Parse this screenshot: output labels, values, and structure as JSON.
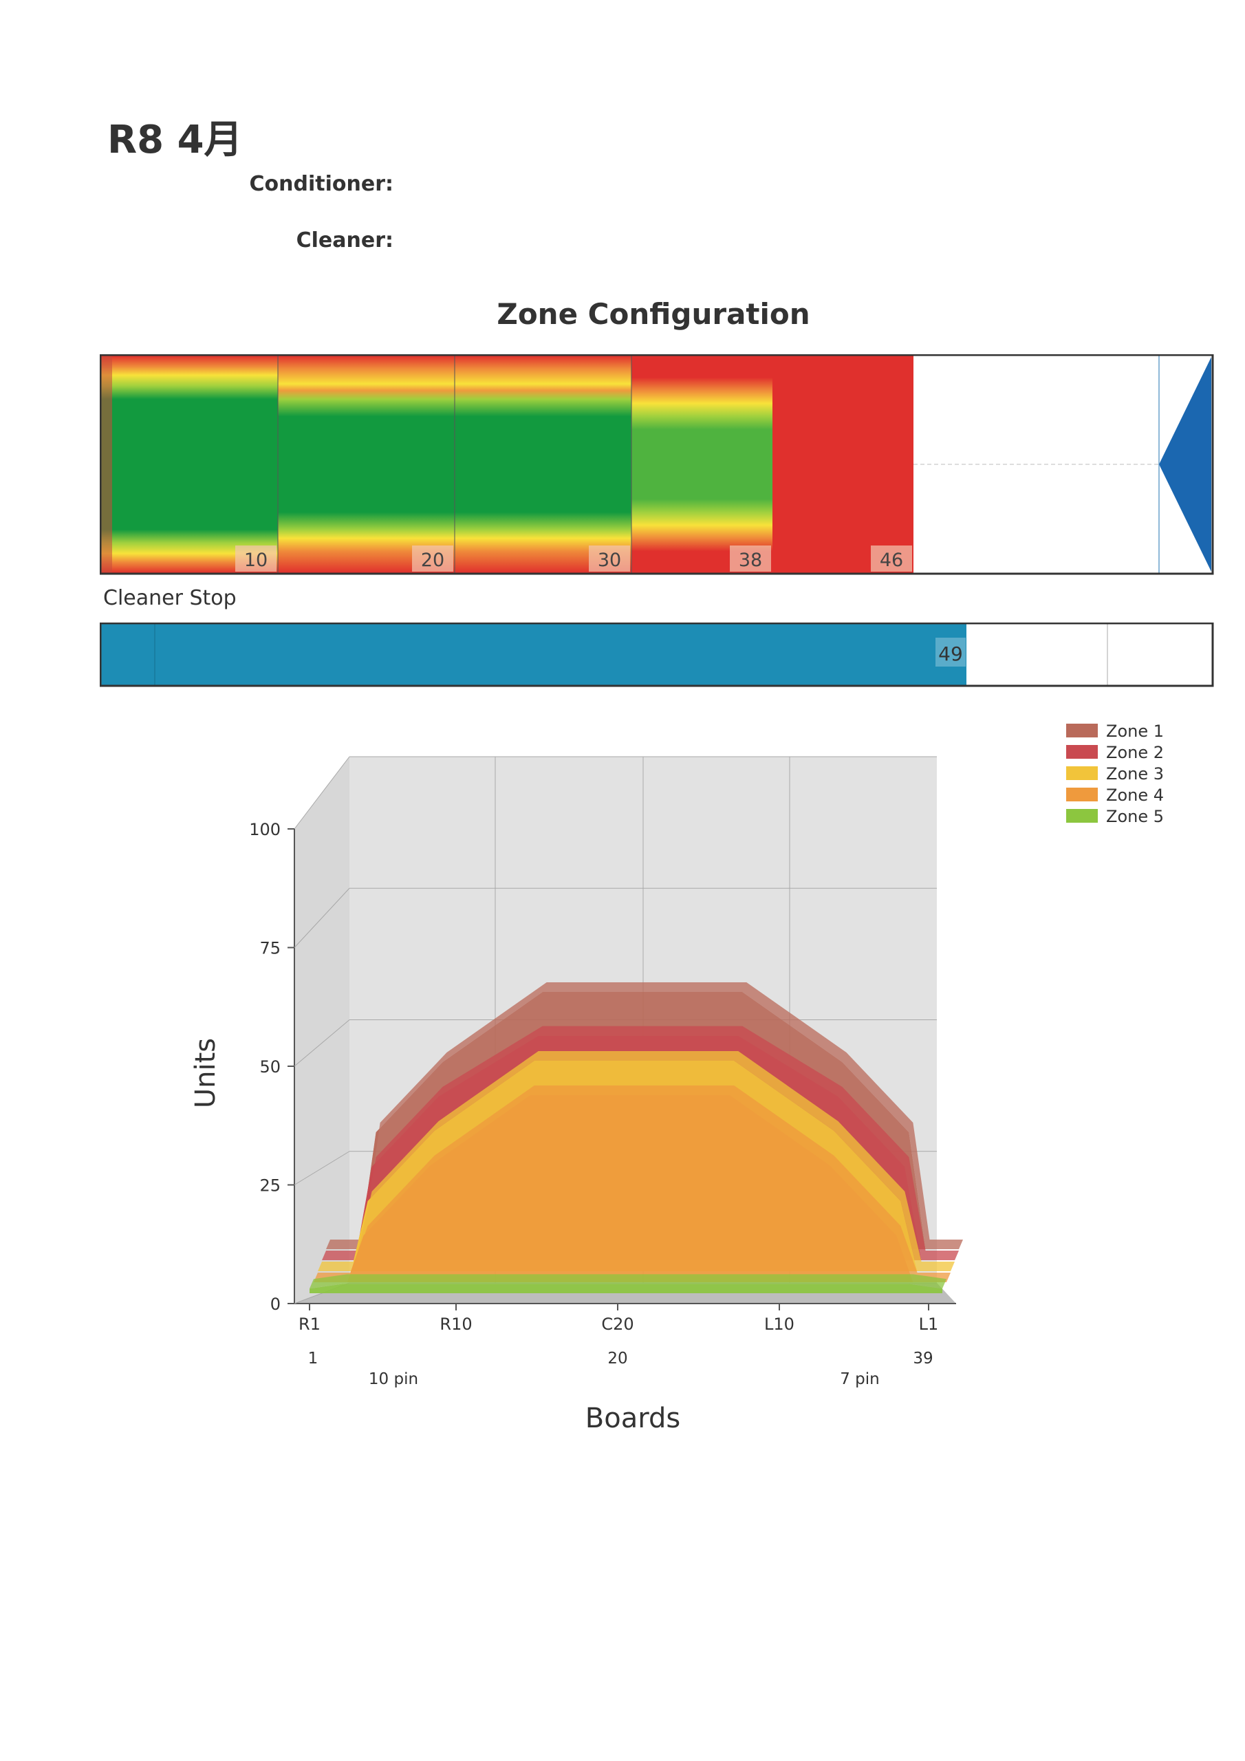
{
  "header": {
    "title": "R8 4月",
    "conditioner_label": "Conditioner:",
    "cleaner_label": "Cleaner:",
    "section_title": "Zone Configuration",
    "cleaner_stop_label": "Cleaner Stop"
  },
  "lane_strip": {
    "segment_labels": [
      "10",
      "20",
      "30",
      "38",
      "46"
    ],
    "cleaner_stop_value": "49"
  },
  "colors": {
    "zone1": "#b96a5a",
    "zone2": "#c94a50",
    "zone3": "#f2c43a",
    "zone4": "#ef9a3d",
    "zone5": "#8cc63f",
    "lane_green": "#129a3f",
    "lane_red": "#e0302d",
    "arrow_blue": "#1b67b0",
    "cleaner_blue": "#1d8db5"
  },
  "chart_data": {
    "type": "area",
    "xlabel": "Boards",
    "ylabel": "Units",
    "ylim": [
      0,
      100
    ],
    "yticks": [
      "0",
      "25",
      "50",
      "75",
      "100"
    ],
    "xticks": [
      "R1",
      "R10",
      "C20",
      "L10",
      "L1"
    ],
    "xticks_secondary": [
      "1",
      "20",
      "39"
    ],
    "pin_labels": [
      "10 pin",
      "7 pin"
    ],
    "legend_position": "top-right",
    "series": [
      {
        "name": "Zone 1",
        "x": [
          1,
          3,
          4,
          8,
          14,
          26,
          32,
          36,
          37,
          39
        ],
        "values": [
          0,
          0,
          25,
          40,
          55,
          55,
          40,
          25,
          0,
          0
        ]
      },
      {
        "name": "Zone 2",
        "x": [
          1,
          3,
          4,
          8,
          14,
          26,
          32,
          36,
          37,
          39
        ],
        "values": [
          0,
          0,
          20,
          35,
          48,
          48,
          35,
          20,
          0,
          0
        ]
      },
      {
        "name": "Zone 3",
        "x": [
          1,
          3,
          4,
          8,
          14,
          26,
          32,
          36,
          37,
          39
        ],
        "values": [
          0,
          0,
          15,
          30,
          45,
          45,
          30,
          15,
          0,
          0
        ]
      },
      {
        "name": "Zone 4",
        "x": [
          1,
          3,
          4,
          8,
          14,
          26,
          32,
          36,
          37,
          39
        ],
        "values": [
          0,
          0,
          10,
          25,
          40,
          40,
          25,
          10,
          0,
          0
        ]
      },
      {
        "name": "Zone 5",
        "x": [
          1,
          3,
          37,
          39
        ],
        "values": [
          1,
          2,
          2,
          1
        ]
      }
    ]
  }
}
